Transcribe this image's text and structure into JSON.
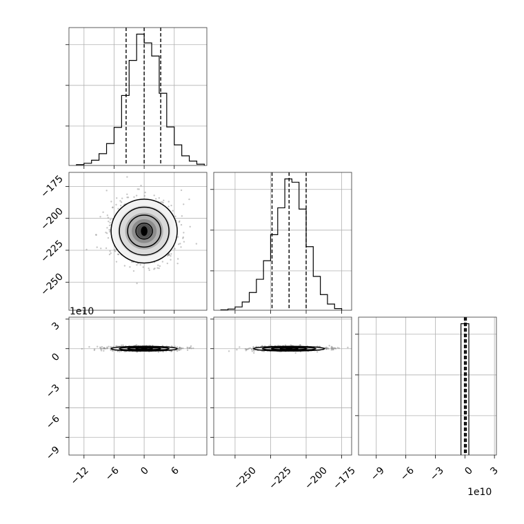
{
  "chart_data": {
    "type": "corner",
    "grid": true,
    "colors": {
      "ink": "#000000",
      "grid": "#b0b0b0",
      "scatter": "#808080"
    },
    "panels": [
      {
        "id": "hist-x",
        "type": "histogram",
        "xlim": [
          -15,
          12.5
        ],
        "x_ticks": [
          -12,
          -6,
          0,
          6
        ],
        "quantile_lines": [
          -3.6,
          0.0,
          3.3
        ],
        "bin_edges": [
          -13.5,
          -12,
          -10.5,
          -9,
          -7.5,
          -6,
          -4.5,
          -3,
          -1.5,
          0,
          1.5,
          3,
          4.5,
          6,
          7.5,
          9,
          10.5,
          12
        ],
        "counts": [
          2,
          5,
          12,
          27,
          50,
          87,
          160,
          240,
          300,
          280,
          250,
          165,
          88,
          47,
          22,
          10,
          3
        ]
      },
      {
        "id": "hist-y",
        "type": "histogram",
        "xlim": [
          -265,
          -168
        ],
        "x_ticks": [
          -250,
          -225,
          -200,
          -175
        ],
        "quantile_lines": [
          -224,
          -212,
          -200
        ],
        "bin_edges": [
          -260,
          -255,
          -250,
          -245,
          -240,
          -235,
          -230,
          -225,
          -220,
          -215,
          -210,
          -205,
          -200,
          -195,
          -190,
          -185,
          -180,
          -175
        ],
        "counts": [
          1,
          3,
          8,
          20,
          43,
          75,
          120,
          183,
          248,
          318,
          310,
          245,
          154,
          82,
          38,
          15,
          4
        ]
      },
      {
        "id": "hist-z",
        "type": "histogram",
        "xlim": [
          -10.8,
          3.2
        ],
        "x_ticks": [
          -9,
          -6,
          -3,
          0,
          3
        ],
        "offset_label": "1e10",
        "quantile_lines": [
          -0.05,
          0.05,
          0.15
        ],
        "bin_edges": [
          -0.4,
          0.4
        ],
        "counts": [
          1
        ]
      },
      {
        "id": "contour-x-y",
        "type": "2d-density",
        "xlim": [
          -15,
          12.5
        ],
        "ylim": [
          -272,
          -164
        ],
        "y_ticks": [
          -175,
          -200,
          -225,
          -250
        ],
        "center": [
          0,
          -210
        ],
        "sigma": [
          3.3,
          12.5
        ]
      },
      {
        "id": "contour-x-z",
        "type": "2d-density",
        "xlim": [
          -15,
          12.5
        ],
        "ylim": [
          -10.8,
          3.2
        ],
        "y_ticks": [
          3,
          0,
          -3,
          -6,
          -9
        ],
        "offset_label": "1e10",
        "center": [
          0,
          0
        ],
        "sigma": [
          3.3,
          0.12
        ]
      },
      {
        "id": "contour-y-z",
        "type": "2d-density",
        "xlim": [
          -265,
          -168
        ],
        "ylim": [
          -10.8,
          3.2
        ],
        "center": [
          -212,
          0
        ],
        "sigma": [
          12.5,
          0.12
        ]
      }
    ],
    "axis_labels": {
      "bottom-left": [
        "−12",
        "−6",
        "0",
        "6"
      ],
      "bottom-middle": [
        "−250",
        "−225",
        "−200",
        "−175"
      ],
      "bottom-right": [
        "−9",
        "−6",
        "−3",
        "0",
        "3"
      ],
      "left-middle": [
        "−175",
        "−200",
        "−225",
        "−250"
      ],
      "left-bottom": [
        "3",
        "0",
        "−3",
        "−6",
        "−9"
      ]
    },
    "offset_labels": {
      "left-bottom": "1e10",
      "bottom-right": "1e10"
    }
  }
}
